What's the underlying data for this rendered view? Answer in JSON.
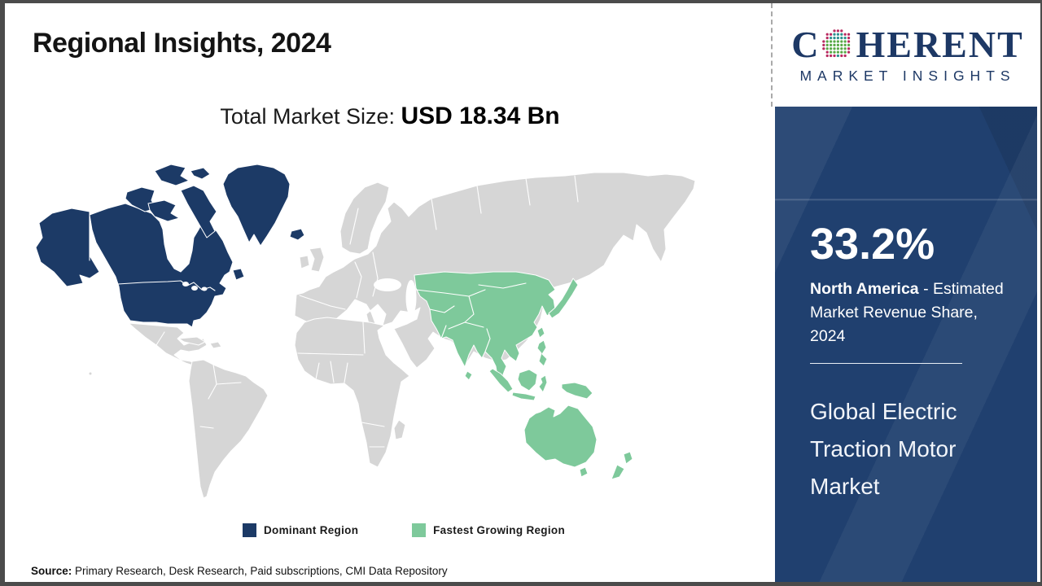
{
  "title": "Regional Insights, 2024",
  "market_size": {
    "label": "Total Market Size: ",
    "value": "USD 18.34 Bn"
  },
  "logo": {
    "brand_start": "C",
    "brand_end": "HERENT",
    "tagline": "MARKET INSIGHTS"
  },
  "chart_data": {
    "type": "heatmap",
    "subtype": "choropleth-world-map",
    "title": "Regional Insights, 2024",
    "total_market_size": "USD 18.34 Bn",
    "regions": [
      {
        "name": "North America",
        "status": "Dominant Region",
        "value_share_pct": 33.2,
        "color": "#1c3a66"
      },
      {
        "name": "Asia Pacific",
        "status": "Fastest Growing Region",
        "value_share_pct": null,
        "color": "#7ec99b"
      }
    ],
    "legend": [
      {
        "label": "Dominant Region",
        "color": "#1c3a66"
      },
      {
        "label": "Fastest Growing Region",
        "color": "#7ec99b"
      }
    ],
    "legend_position": "bottom-center"
  },
  "legend": [
    {
      "label": "Dominant Region",
      "color": "#1c3a66"
    },
    {
      "label": "Fastest Growing Region",
      "color": "#7ec99b"
    }
  ],
  "sidebar": {
    "share_value": "33.2%",
    "share_region": "North America",
    "share_text": " - Estimated Market Revenue Share, 2024",
    "report_title": "Global Electric Traction Motor Market"
  },
  "footer": {
    "source_label": "Source:",
    "source_text": " Primary Research, Desk Research, Paid subscriptions, CMI Data Repository"
  },
  "colors": {
    "dominant": "#1c3a66",
    "fastest_growing": "#7ec99b",
    "land": "#d6d6d6",
    "sidebar_bg": "#20406f",
    "logo_navy": "#1d3865"
  }
}
